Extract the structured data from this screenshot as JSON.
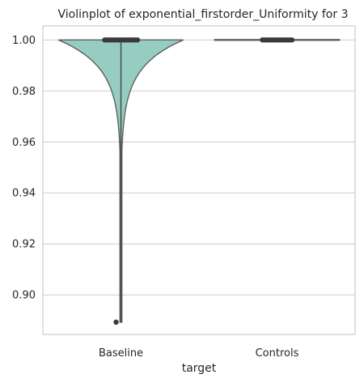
{
  "chart_data": {
    "type": "violin",
    "title": "Violinplot of exponential_firstorder_Uniformity for 3",
    "xlabel": "target",
    "ylabel": "",
    "categories": [
      "Baseline",
      "Controls"
    ],
    "ylim": [
      0.8845,
      1.0055
    ],
    "yticks": [
      0.9,
      0.92,
      0.94,
      0.96,
      0.98,
      1.0
    ],
    "ytick_labels": [
      "0.90",
      "0.92",
      "0.94",
      "0.96",
      "0.98",
      "1.00"
    ],
    "grid": true,
    "violins": [
      {
        "name": "Baseline",
        "color": "#96cdc1",
        "edge_color": "#5f5f5f",
        "min": 0.8893,
        "max": 1.0,
        "outliers": [
          0.8893
        ],
        "points_near_max": [
          0.9999,
          1.0
        ]
      },
      {
        "name": "Controls",
        "color": "#fbb4ae",
        "edge_color": "#5f5f5f",
        "min": 0.9999,
        "max": 1.0,
        "points_near_max": [
          0.99995,
          1.0
        ]
      }
    ]
  }
}
